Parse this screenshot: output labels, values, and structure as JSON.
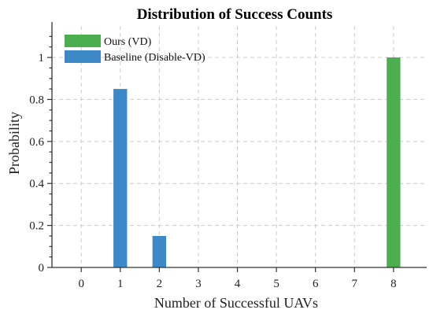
{
  "chart_data": {
    "type": "bar",
    "title": "Distribution of Success Counts",
    "xlabel": "Number of Successful UAVs",
    "ylabel": "Probability",
    "categories": [
      "0",
      "1",
      "2",
      "3",
      "4",
      "5",
      "6",
      "7",
      "8"
    ],
    "xlim": [
      -0.75,
      8.85
    ],
    "ylim": [
      0,
      1.15
    ],
    "yticks": [
      0,
      0.2,
      0.4,
      0.6,
      0.8,
      1
    ],
    "ytick_labels": [
      "0",
      "0.2",
      "0.4",
      "0.6",
      "0.8",
      "1"
    ],
    "grid": true,
    "legend_position": "top-left",
    "series": [
      {
        "name": "Ours (VD)",
        "color": "#4caf4f",
        "values": [
          0,
          0,
          0,
          0,
          0,
          0,
          0,
          0,
          1.0
        ]
      },
      {
        "name": "Baseline (Disable-VD)",
        "color": "#3d88c6",
        "values": [
          0,
          0.85,
          0.15,
          0,
          0,
          0,
          0,
          0,
          0
        ]
      }
    ]
  }
}
